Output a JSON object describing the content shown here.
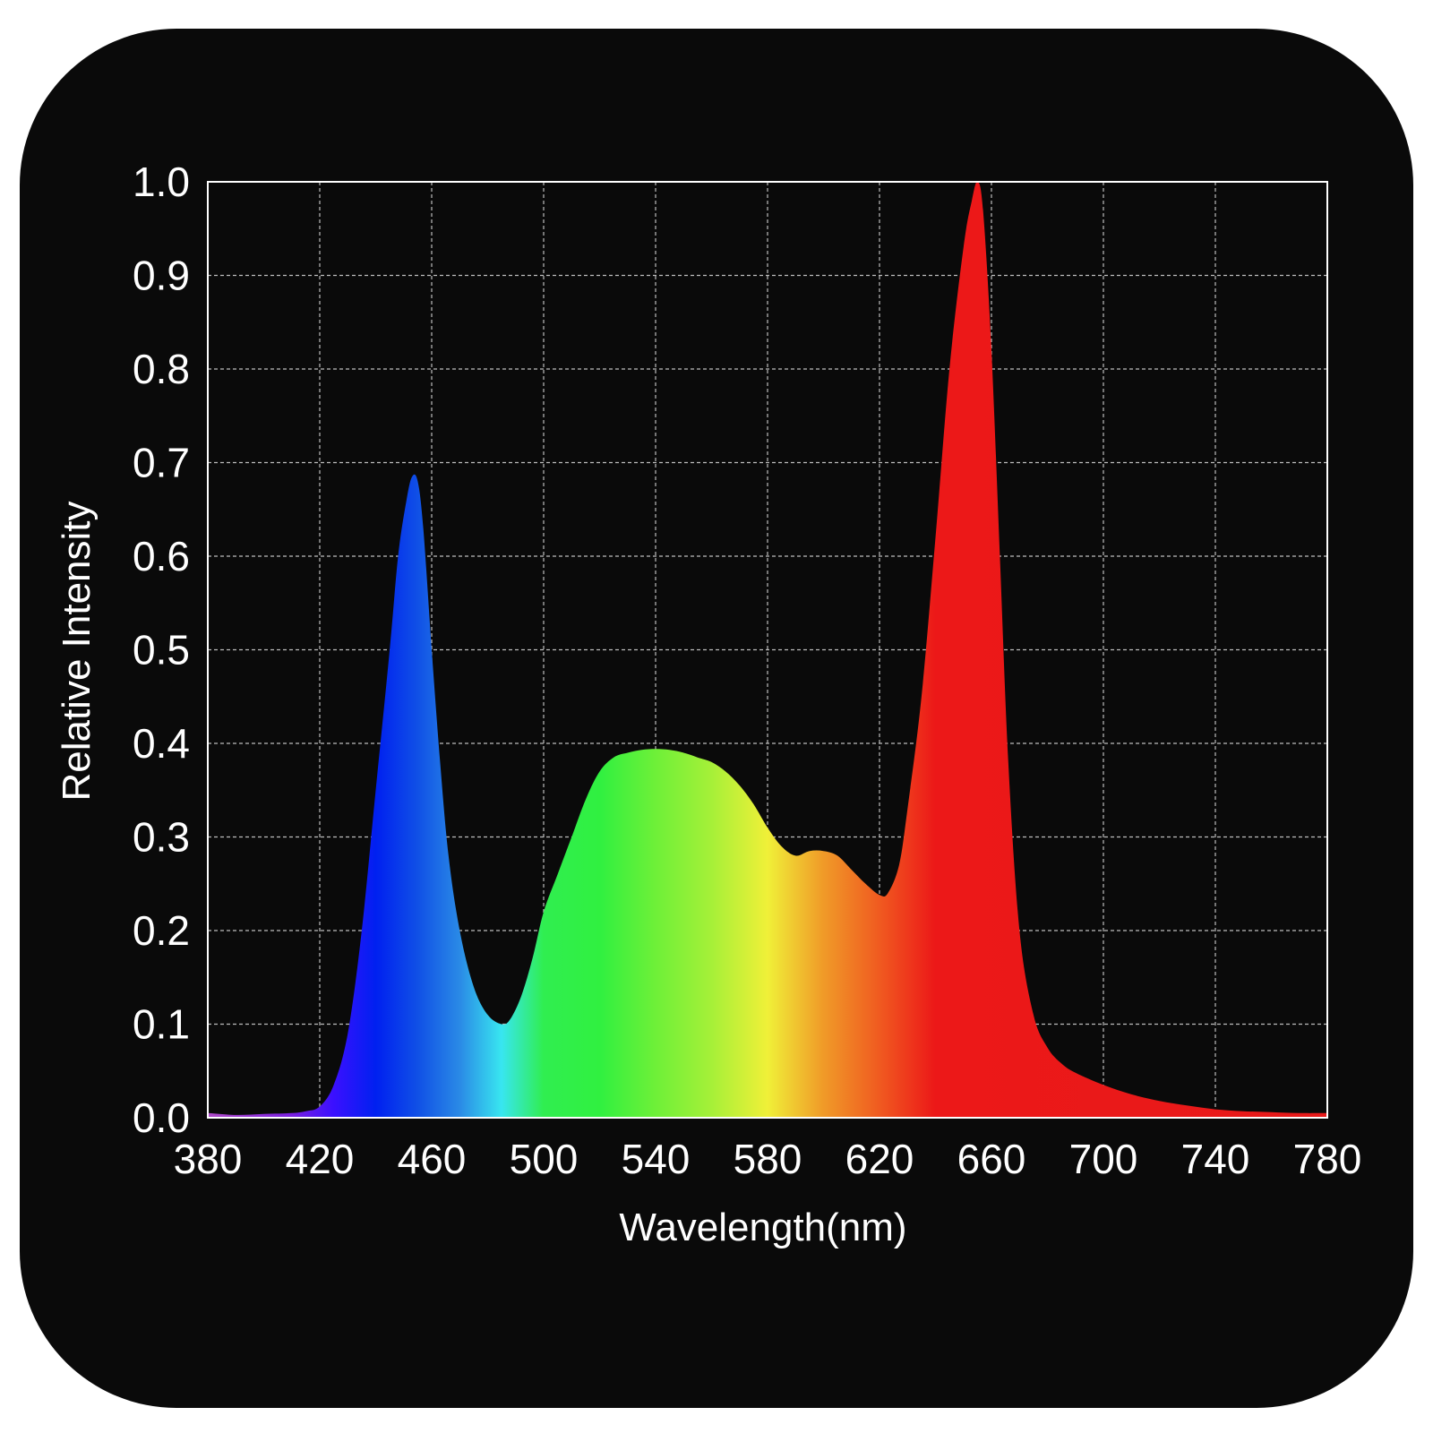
{
  "chart_data": {
    "type": "area",
    "title": "",
    "xlabel": "Wavelength(nm)",
    "ylabel": "Relative Intensity",
    "xlim": [
      380,
      780
    ],
    "ylim": [
      0.0,
      1.0
    ],
    "grid": true,
    "x_ticks": [
      "380",
      "420",
      "460",
      "500",
      "540",
      "580",
      "620",
      "660",
      "700",
      "740",
      "780"
    ],
    "y_ticks": [
      "0.0",
      "0.1",
      "0.2",
      "0.3",
      "0.4",
      "0.5",
      "0.6",
      "0.7",
      "0.8",
      "0.9",
      "1.0"
    ],
    "series": [
      {
        "x": [
          380,
          390,
          400,
          410,
          415,
          420,
          425,
          430,
          435,
          440,
          445,
          448,
          451,
          453,
          455,
          457,
          460,
          463,
          466,
          470,
          475,
          480,
          485,
          488,
          492,
          496,
          500,
          505,
          510,
          515,
          520,
          525,
          530,
          535,
          540,
          545,
          550,
          555,
          560,
          565,
          570,
          575,
          580,
          585,
          590,
          595,
          600,
          605,
          610,
          615,
          620,
          623,
          627,
          630,
          635,
          640,
          645,
          650,
          653,
          655,
          657,
          660,
          663,
          666,
          670,
          675,
          680,
          685,
          690,
          700,
          710,
          720,
          730,
          740,
          750,
          760,
          770,
          780
        ],
        "y": [
          0.005,
          0.003,
          0.004,
          0.005,
          0.007,
          0.012,
          0.035,
          0.09,
          0.2,
          0.35,
          0.5,
          0.6,
          0.66,
          0.685,
          0.68,
          0.63,
          0.5,
          0.38,
          0.28,
          0.2,
          0.14,
          0.11,
          0.1,
          0.105,
          0.13,
          0.17,
          0.22,
          0.26,
          0.3,
          0.34,
          0.37,
          0.385,
          0.39,
          0.393,
          0.394,
          0.393,
          0.39,
          0.385,
          0.38,
          0.37,
          0.355,
          0.335,
          0.31,
          0.29,
          0.28,
          0.285,
          0.285,
          0.28,
          0.265,
          0.25,
          0.238,
          0.24,
          0.27,
          0.33,
          0.45,
          0.62,
          0.8,
          0.93,
          0.98,
          1.0,
          0.97,
          0.82,
          0.6,
          0.38,
          0.2,
          0.11,
          0.075,
          0.058,
          0.048,
          0.035,
          0.025,
          0.018,
          0.013,
          0.009,
          0.007,
          0.006,
          0.005,
          0.005
        ]
      }
    ],
    "gradient_colors": [
      {
        "nm": 380,
        "color": "#b04cc8"
      },
      {
        "nm": 410,
        "color": "#7a20e0"
      },
      {
        "nm": 425,
        "color": "#3a10ff"
      },
      {
        "nm": 440,
        "color": "#0020f0"
      },
      {
        "nm": 455,
        "color": "#1050e6"
      },
      {
        "nm": 470,
        "color": "#2a8ae6"
      },
      {
        "nm": 485,
        "color": "#38e6f0"
      },
      {
        "nm": 500,
        "color": "#30ee50"
      },
      {
        "nm": 520,
        "color": "#30f040"
      },
      {
        "nm": 540,
        "color": "#6ef038"
      },
      {
        "nm": 560,
        "color": "#a6f038"
      },
      {
        "nm": 580,
        "color": "#f0f038"
      },
      {
        "nm": 600,
        "color": "#f09a28"
      },
      {
        "nm": 620,
        "color": "#f05a20"
      },
      {
        "nm": 640,
        "color": "#ec1818"
      },
      {
        "nm": 780,
        "color": "#e81a1a"
      }
    ]
  }
}
